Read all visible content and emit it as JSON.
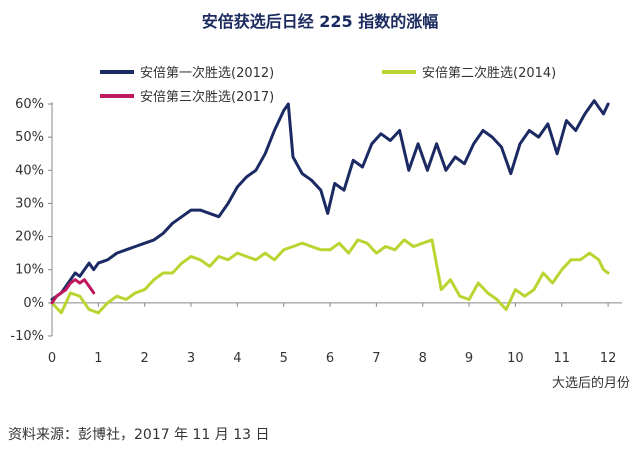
{
  "title": "安倍获选后日经 225 指数的涨幅",
  "source": "资料来源：彭博社，2017 年 11 月 13 日",
  "chart_data": {
    "type": "line",
    "title": "安倍获选后日经 225 指数的涨幅",
    "xlabel": "大选后的月份",
    "ylabel": "",
    "xlim": [
      0,
      12.3
    ],
    "ylim": [
      -10,
      60
    ],
    "xticks": [
      0,
      1,
      2,
      3,
      4,
      5,
      6,
      7,
      8,
      9,
      10,
      11,
      12
    ],
    "yticks": [
      -10,
      0,
      10,
      20,
      30,
      40,
      50,
      60
    ],
    "ytick_labels": [
      "-10%",
      "0%",
      "10%",
      "20%",
      "30%",
      "40%",
      "50%",
      "60%"
    ],
    "grid": false,
    "legend": "top",
    "series": [
      {
        "name": "安倍第一次胜选(2012)",
        "color": "#1b2a63",
        "x": [
          0,
          0.1,
          0.2,
          0.3,
          0.4,
          0.5,
          0.6,
          0.7,
          0.8,
          0.9,
          1.0,
          1.2,
          1.4,
          1.6,
          1.8,
          2.0,
          2.2,
          2.4,
          2.6,
          2.8,
          3.0,
          3.2,
          3.4,
          3.6,
          3.8,
          4.0,
          4.2,
          4.4,
          4.6,
          4.8,
          5.0,
          5.1,
          5.2,
          5.4,
          5.6,
          5.8,
          5.95,
          6.1,
          6.3,
          6.5,
          6.7,
          6.9,
          7.1,
          7.3,
          7.5,
          7.7,
          7.9,
          8.1,
          8.3,
          8.5,
          8.7,
          8.9,
          9.1,
          9.3,
          9.5,
          9.7,
          9.9,
          10.1,
          10.3,
          10.5,
          10.7,
          10.9,
          11.1,
          11.3,
          11.5,
          11.7,
          11.8,
          11.9,
          12.0
        ],
        "y": [
          1,
          2,
          3,
          5,
          7,
          9,
          8,
          10,
          12,
          10,
          12,
          13,
          15,
          16,
          17,
          18,
          19,
          21,
          24,
          26,
          28,
          28,
          27,
          26,
          30,
          35,
          38,
          40,
          45,
          52,
          58,
          60,
          44,
          39,
          37,
          34,
          27,
          36,
          34,
          43,
          41,
          48,
          51,
          49,
          52,
          40,
          48,
          40,
          48,
          40,
          44,
          42,
          48,
          52,
          50,
          47,
          39,
          48,
          52,
          50,
          54,
          45,
          55,
          52,
          57,
          61,
          59,
          57,
          60
        ]
      },
      {
        "name": "安倍第二次胜选(2014)",
        "color": "#b9d532",
        "x": [
          0,
          0.2,
          0.4,
          0.6,
          0.8,
          1.0,
          1.2,
          1.4,
          1.6,
          1.8,
          2.0,
          2.2,
          2.4,
          2.6,
          2.8,
          3.0,
          3.2,
          3.4,
          3.6,
          3.8,
          4.0,
          4.2,
          4.4,
          4.6,
          4.8,
          5.0,
          5.2,
          5.4,
          5.6,
          5.8,
          6.0,
          6.2,
          6.4,
          6.6,
          6.8,
          7.0,
          7.2,
          7.4,
          7.6,
          7.8,
          8.0,
          8.2,
          8.4,
          8.6,
          8.8,
          9.0,
          9.2,
          9.4,
          9.6,
          9.8,
          10.0,
          10.2,
          10.4,
          10.6,
          10.8,
          11.0,
          11.2,
          11.4,
          11.6,
          11.8,
          11.9,
          12.0
        ],
        "y": [
          0,
          -3,
          3,
          2,
          -2,
          -3,
          0,
          2,
          1,
          3,
          4,
          7,
          9,
          9,
          12,
          14,
          13,
          11,
          14,
          13,
          15,
          14,
          13,
          15,
          13,
          16,
          17,
          18,
          17,
          16,
          16,
          18,
          15,
          19,
          18,
          15,
          17,
          16,
          19,
          17,
          18,
          19,
          4,
          7,
          2,
          1,
          6,
          3,
          1,
          -2,
          4,
          2,
          4,
          9,
          6,
          10,
          13,
          13,
          15,
          13,
          10,
          9
        ]
      },
      {
        "name": "安倍第三次胜选(2017)",
        "color": "#c0185e",
        "x": [
          0,
          0.1,
          0.2,
          0.3,
          0.4,
          0.5,
          0.6,
          0.7,
          0.8,
          0.9
        ],
        "y": [
          0,
          2,
          3,
          4,
          6,
          7,
          6,
          7,
          5,
          3
        ]
      }
    ]
  }
}
